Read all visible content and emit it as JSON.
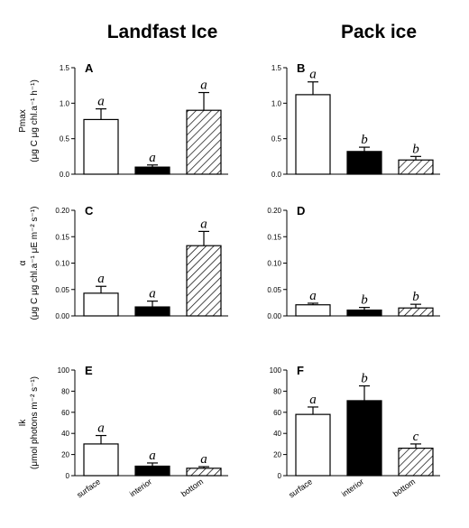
{
  "columns": [
    "Landfast Ice",
    "Pack ice"
  ],
  "chart_data": [
    {
      "type": "bar",
      "panel": "A",
      "column": "Landfast Ice",
      "categories": [
        "surface",
        "interior",
        "bottom"
      ],
      "values": [
        0.77,
        0.1,
        0.9
      ],
      "errors": [
        0.15,
        0.03,
        0.25
      ],
      "significance": [
        "a",
        "a",
        "a"
      ],
      "ylabel_lines": [
        "Pmax",
        "(μg C μg chl.a⁻¹ h⁻¹)"
      ],
      "ylim": [
        0,
        1.5
      ],
      "yticks": [
        "0.0",
        "0.5",
        "1.0",
        "1.5"
      ]
    },
    {
      "type": "bar",
      "panel": "B",
      "column": "Pack ice",
      "categories": [
        "surface",
        "interior",
        "bottom"
      ],
      "values": [
        1.12,
        0.32,
        0.2
      ],
      "errors": [
        0.18,
        0.06,
        0.05
      ],
      "significance": [
        "a",
        "b",
        "b"
      ],
      "ylabel_lines": [],
      "ylim": [
        0,
        1.5
      ],
      "yticks": [
        "0.0",
        "0.5",
        "1.0",
        "1.5"
      ]
    },
    {
      "type": "bar",
      "panel": "C",
      "column": "Landfast Ice",
      "categories": [
        "surface",
        "interior",
        "bottom"
      ],
      "values": [
        0.043,
        0.017,
        0.133
      ],
      "errors": [
        0.013,
        0.011,
        0.027
      ],
      "significance": [
        "a",
        "a",
        "a"
      ],
      "ylabel_lines": [
        "α",
        "(μg C μg chl.a⁻¹ μE m⁻² s⁻¹)"
      ],
      "ylim": [
        0,
        0.2
      ],
      "yticks": [
        "0.00",
        "0.05",
        "0.10",
        "0.15",
        "0.20"
      ]
    },
    {
      "type": "bar",
      "panel": "D",
      "column": "Pack ice",
      "categories": [
        "surface",
        "interior",
        "bottom"
      ],
      "values": [
        0.021,
        0.011,
        0.015
      ],
      "errors": [
        0.003,
        0.005,
        0.007
      ],
      "significance": [
        "a",
        "b",
        "b"
      ],
      "ylabel_lines": [],
      "ylim": [
        0,
        0.2
      ],
      "yticks": [
        "0.00",
        "0.05",
        "0.10",
        "0.15",
        "0.20"
      ]
    },
    {
      "type": "bar",
      "panel": "E",
      "column": "Landfast Ice",
      "categories": [
        "surface",
        "interior",
        "bottom"
      ],
      "values": [
        30,
        9,
        7
      ],
      "errors": [
        8,
        3,
        1.5
      ],
      "significance": [
        "a",
        "a",
        "a"
      ],
      "ylabel_lines": [
        "Ik",
        "(μmol photons m⁻² s⁻¹)"
      ],
      "ylim": [
        0,
        100
      ],
      "yticks": [
        "0",
        "20",
        "40",
        "60",
        "80",
        "100"
      ]
    },
    {
      "type": "bar",
      "panel": "F",
      "column": "Pack ice",
      "categories": [
        "surface",
        "interior",
        "bottom"
      ],
      "values": [
        58,
        71,
        26
      ],
      "errors": [
        7,
        14,
        4
      ],
      "significance": [
        "a",
        "b",
        "c"
      ],
      "ylabel_lines": [],
      "ylim": [
        0,
        100
      ],
      "yticks": [
        "0",
        "20",
        "40",
        "60",
        "80",
        "100"
      ]
    }
  ],
  "bar_styles": [
    "white",
    "black",
    "hatched"
  ]
}
